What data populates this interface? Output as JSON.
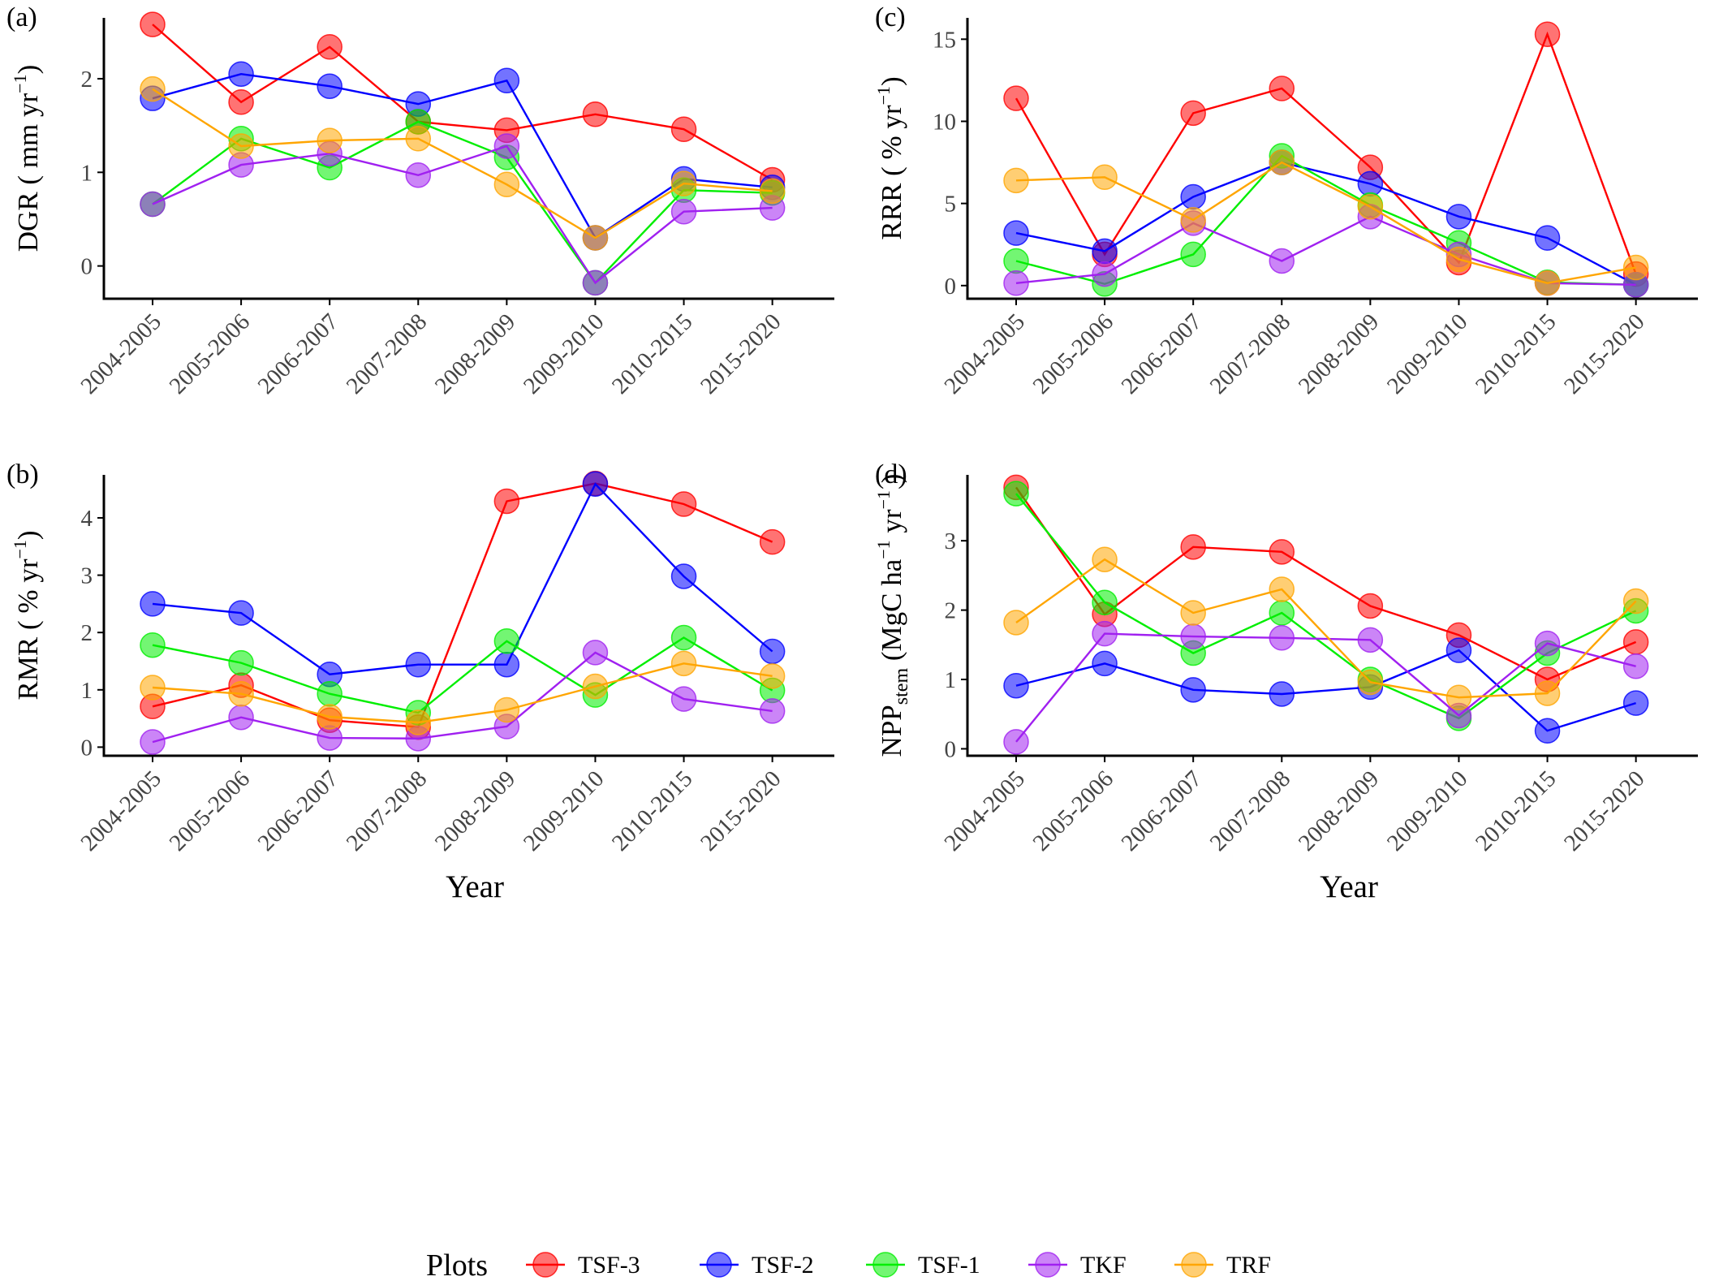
{
  "x_axis_title": "Year",
  "legend": {
    "title": "Plots",
    "entries": [
      {
        "name": "TSF-3",
        "color": "#ff0000"
      },
      {
        "name": "TSF-2",
        "color": "#0000ff"
      },
      {
        "name": "TSF-1",
        "color": "#00ee00"
      },
      {
        "name": "TKF",
        "color": "#a020f0"
      },
      {
        "name": "TRF",
        "color": "#ffa500"
      }
    ]
  },
  "chart_data": [
    {
      "panel": "(a)",
      "type": "line",
      "ylabel": {
        "main": "DGR ( mm yr",
        "sup": "−1",
        "tail": ")"
      },
      "categories": [
        "2004-2005",
        "2005-2006",
        "2006-2007",
        "2007-2008",
        "2008-2009",
        "2009-2010",
        "2010-2015",
        "2015-2020"
      ],
      "ylim": [
        -0.35,
        2.65
      ],
      "yticks": [
        0,
        1,
        2
      ],
      "series": [
        {
          "name": "TSF-3",
          "values": [
            2.58,
            1.75,
            2.34,
            1.54,
            1.45,
            1.62,
            1.46,
            0.92
          ]
        },
        {
          "name": "TSF-2",
          "values": [
            1.79,
            2.05,
            1.92,
            1.73,
            1.98,
            0.3,
            0.93,
            0.84
          ]
        },
        {
          "name": "TSF-1",
          "values": [
            0.66,
            1.36,
            1.05,
            1.54,
            1.16,
            -0.18,
            0.81,
            0.78
          ]
        },
        {
          "name": "TKF",
          "values": [
            0.66,
            1.08,
            1.2,
            0.97,
            1.28,
            -0.18,
            0.58,
            0.62
          ]
        },
        {
          "name": "TRF",
          "values": [
            1.89,
            1.28,
            1.34,
            1.36,
            0.87,
            0.3,
            0.88,
            0.8
          ]
        }
      ]
    },
    {
      "panel": "(b)",
      "type": "line",
      "ylabel": {
        "main": "RMR ( %  yr",
        "sup": "−1",
        "tail": ")"
      },
      "categories": [
        "2004-2005",
        "2005-2006",
        "2006-2007",
        "2007-2008",
        "2008-2009",
        "2009-2010",
        "2010-2015",
        "2015-2020"
      ],
      "ylim": [
        -0.15,
        4.75
      ],
      "yticks": [
        0,
        1,
        2,
        3,
        4
      ],
      "series": [
        {
          "name": "TSF-3",
          "values": [
            0.71,
            1.08,
            0.47,
            0.35,
            4.29,
            4.6,
            4.24,
            3.58
          ]
        },
        {
          "name": "TSF-2",
          "values": [
            2.5,
            2.34,
            1.27,
            1.44,
            1.44,
            4.59,
            2.98,
            1.67
          ]
        },
        {
          "name": "TSF-1",
          "values": [
            1.78,
            1.47,
            0.93,
            0.6,
            1.85,
            0.91,
            1.91,
            0.99
          ]
        },
        {
          "name": "TKF",
          "values": [
            0.09,
            0.52,
            0.16,
            0.15,
            0.36,
            1.65,
            0.84,
            0.63
          ]
        },
        {
          "name": "TRF",
          "values": [
            1.04,
            0.93,
            0.53,
            0.43,
            0.65,
            1.06,
            1.46,
            1.24
          ]
        }
      ]
    },
    {
      "panel": "(c)",
      "type": "line",
      "ylabel": {
        "main": "RRR ( %  yr",
        "sup": "−1",
        "tail": ")"
      },
      "categories": [
        "2004-2005",
        "2005-2006",
        "2006-2007",
        "2007-2008",
        "2008-2009",
        "2009-2010",
        "2010-2015",
        "2015-2020"
      ],
      "ylim": [
        -0.8,
        16.3
      ],
      "yticks": [
        0,
        5,
        10,
        15
      ],
      "series": [
        {
          "name": "TSF-3",
          "values": [
            11.4,
            1.9,
            10.5,
            12.0,
            7.2,
            1.4,
            15.3,
            0.7
          ]
        },
        {
          "name": "TSF-2",
          "values": [
            3.2,
            2.1,
            5.4,
            7.5,
            6.2,
            4.2,
            2.9,
            0.05
          ]
        },
        {
          "name": "TSF-1",
          "values": [
            1.5,
            0.1,
            1.9,
            7.9,
            4.9,
            2.6,
            0.2,
            0.05
          ]
        },
        {
          "name": "TKF",
          "values": [
            0.15,
            0.7,
            3.8,
            1.5,
            4.2,
            1.9,
            0.15,
            0.05
          ]
        },
        {
          "name": "TRF",
          "values": [
            6.4,
            6.6,
            4.0,
            7.5,
            4.8,
            1.6,
            0.15,
            1.1
          ]
        }
      ]
    },
    {
      "panel": "(d)",
      "type": "line",
      "ylabel": {
        "main": "NPP",
        "sub": "stem",
        "mid": " (MgC ha",
        "sup1": "−1",
        "mid2": " yr",
        "sup2": "−1",
        "tail": " )"
      },
      "categories": [
        "2004-2005",
        "2005-2006",
        "2006-2007",
        "2007-2008",
        "2008-2009",
        "2009-2010",
        "2010-2015",
        "2015-2020"
      ],
      "ylim": [
        -0.1,
        3.95
      ],
      "yticks": [
        0,
        1,
        2,
        3
      ],
      "series": [
        {
          "name": "TSF-3",
          "values": [
            3.77,
            1.94,
            2.91,
            2.84,
            2.06,
            1.64,
            1.0,
            1.54
          ]
        },
        {
          "name": "TSF-2",
          "values": [
            0.91,
            1.23,
            0.85,
            0.79,
            0.89,
            1.42,
            0.26,
            0.66
          ]
        },
        {
          "name": "TSF-1",
          "values": [
            3.68,
            2.11,
            1.38,
            1.96,
            1.0,
            0.44,
            1.38,
            1.99
          ]
        },
        {
          "name": "TKF",
          "values": [
            0.1,
            1.66,
            1.62,
            1.6,
            1.57,
            0.48,
            1.52,
            1.19
          ]
        },
        {
          "name": "TRF",
          "values": [
            1.82,
            2.73,
            1.96,
            2.3,
            0.96,
            0.74,
            0.8,
            2.13
          ]
        }
      ]
    }
  ]
}
